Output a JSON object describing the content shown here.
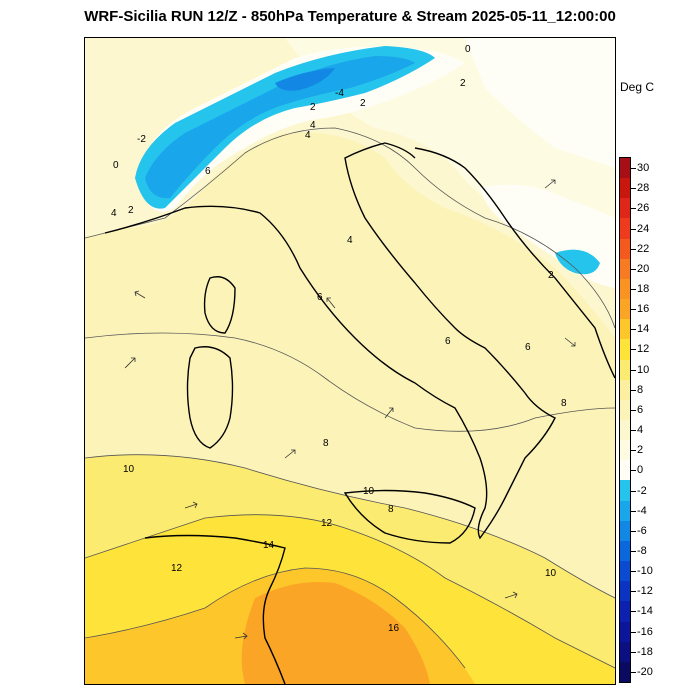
{
  "title": "WRF-Sicilia RUN 12/Z - 850hPa Temperature & Stream 2025-05-11_12:00:00",
  "units": "Deg C",
  "colorbar": {
    "labels": [
      "30",
      "28",
      "26",
      "24",
      "22",
      "20",
      "18",
      "16",
      "14",
      "12",
      "10",
      "8",
      "6",
      "4",
      "2",
      "0",
      "-2",
      "-4",
      "-6",
      "-8",
      "-10",
      "-12",
      "-14",
      "-16",
      "-18",
      "-20"
    ],
    "colors": [
      "#a50f15",
      "#c8170f",
      "#e0261a",
      "#ef3b1d",
      "#f45a20",
      "#f77b22",
      "#f99322",
      "#fba526",
      "#fdc72c",
      "#fde33a",
      "#fbeb70",
      "#fcf0a0",
      "#fcf3b8",
      "#fdf7cf",
      "#fefbe3",
      "#fffef6",
      "#25c4ec",
      "#1aa6ea",
      "#1287e4",
      "#0a68dc",
      "#0a4bd0",
      "#0b34c0",
      "#0c22ae",
      "#0c169a",
      "#0b0f80",
      "#0a0b60"
    ]
  },
  "contour_labels": [
    "0",
    "2",
    "4",
    "2",
    "2",
    "4",
    "0",
    "-2",
    "-4",
    "6",
    "4",
    "2",
    "4",
    "6",
    "6",
    "2",
    "6",
    "8",
    "8",
    "10",
    "10",
    "8",
    "12",
    "14",
    "12",
    "10",
    "16"
  ]
}
